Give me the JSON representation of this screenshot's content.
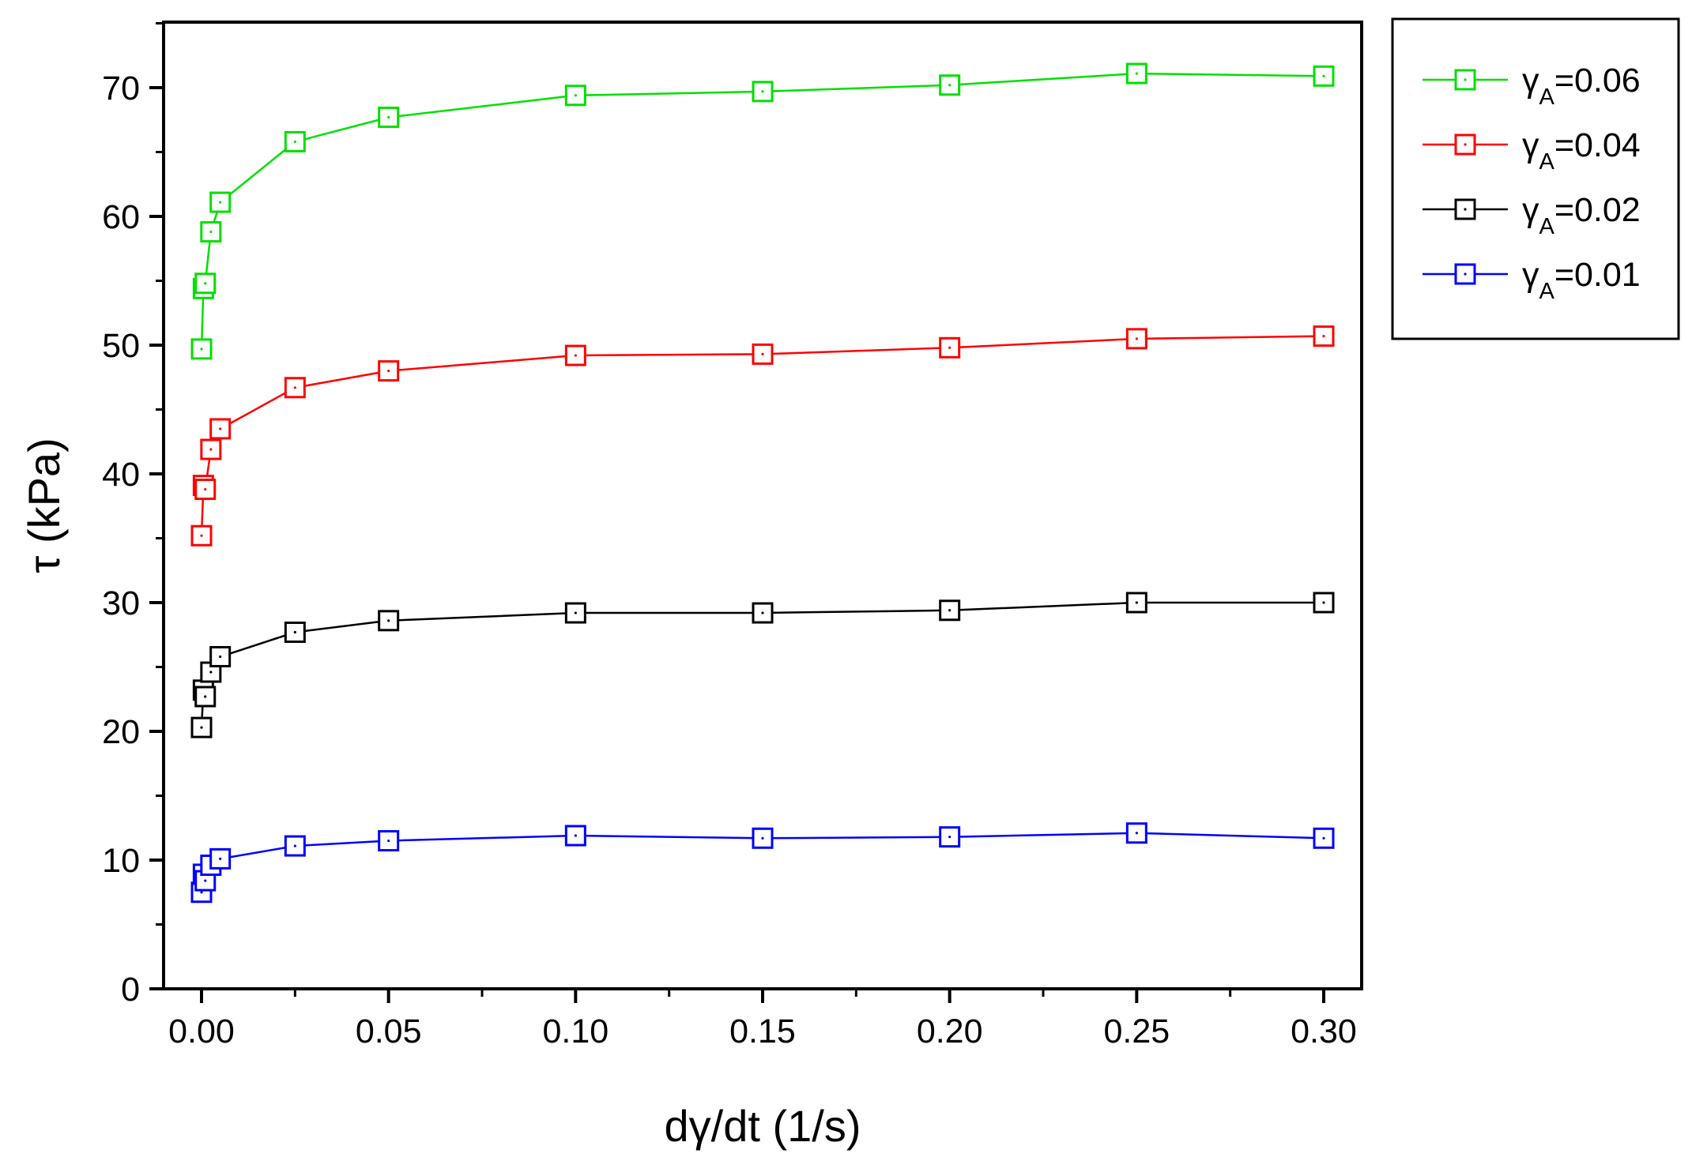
{
  "chart_data": {
    "type": "line",
    "title": "",
    "xlabel": "dγ/dt (1/s)",
    "ylabel": "τ (kPa)",
    "xlim": [
      -0.01,
      0.31
    ],
    "ylim": [
      0,
      75
    ],
    "x_ticks": [
      0.0,
      0.05,
      0.1,
      0.15,
      0.2,
      0.25,
      0.3
    ],
    "x_tick_labels": [
      "0.00",
      "0.05",
      "0.10",
      "0.15",
      "0.20",
      "0.25",
      "0.30"
    ],
    "y_ticks": [
      0,
      10,
      20,
      30,
      40,
      50,
      60,
      70
    ],
    "y_tick_labels": [
      "0",
      "10",
      "20",
      "30",
      "40",
      "50",
      "60",
      "70"
    ],
    "grid": false,
    "legend_position": "outside-top-right",
    "marker": "open-square",
    "series": [
      {
        "name": "γA=0.06",
        "label_main": "γ",
        "label_sub": "A",
        "label_tail": "=0.06",
        "color": "#00e000",
        "x": [
          0.0,
          0.0005,
          0.001,
          0.0025,
          0.005,
          0.025,
          0.05,
          0.1,
          0.15,
          0.2,
          0.25,
          0.3
        ],
        "y": [
          49.7,
          54.4,
          54.8,
          58.8,
          61.1,
          65.8,
          67.7,
          69.4,
          69.7,
          70.2,
          71.1,
          70.9
        ]
      },
      {
        "name": "γA=0.04",
        "label_main": "γ",
        "label_sub": "A",
        "label_tail": "=0.04",
        "color": "#ff0000",
        "x": [
          0.0,
          0.0005,
          0.001,
          0.0025,
          0.005,
          0.025,
          0.05,
          0.1,
          0.15,
          0.2,
          0.25,
          0.3
        ],
        "y": [
          35.2,
          39.1,
          38.8,
          41.9,
          43.5,
          46.7,
          48.0,
          49.2,
          49.3,
          49.8,
          50.5,
          50.7
        ]
      },
      {
        "name": "γA=0.02",
        "label_main": "γ",
        "label_sub": "A",
        "label_tail": "=0.02",
        "color": "#000000",
        "x": [
          0.0,
          0.0005,
          0.001,
          0.0025,
          0.005,
          0.025,
          0.05,
          0.1,
          0.15,
          0.2,
          0.25,
          0.3
        ],
        "y": [
          20.3,
          23.2,
          22.7,
          24.6,
          25.8,
          27.7,
          28.6,
          29.2,
          29.2,
          29.4,
          30.0,
          30.0
        ]
      },
      {
        "name": "γA=0.01",
        "label_main": "γ",
        "label_sub": "A",
        "label_tail": "=0.01",
        "color": "#0000ff",
        "x": [
          0.0,
          0.0005,
          0.001,
          0.0025,
          0.005,
          0.025,
          0.05,
          0.1,
          0.15,
          0.2,
          0.25,
          0.3
        ],
        "y": [
          7.5,
          8.9,
          8.4,
          9.6,
          10.1,
          11.1,
          11.5,
          11.9,
          11.7,
          11.8,
          12.1,
          11.7
        ]
      }
    ]
  }
}
